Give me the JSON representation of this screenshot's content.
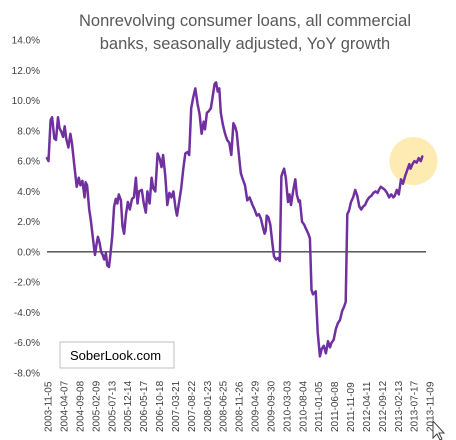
{
  "chart_data": {
    "type": "line",
    "title_lines": [
      "Nonrevolving consumer loans, all commercial",
      "banks, seasonally adjusted, YoY growth"
    ],
    "ylim": [
      -8,
      14
    ],
    "yticks": [
      14,
      12,
      10,
      8,
      6,
      4,
      2,
      0,
      -2,
      -4,
      -6,
      -8
    ],
    "ytick_labels": [
      "14.0%",
      "12.0%",
      "10.0%",
      "8.0%",
      "6.0%",
      "4.0%",
      "2.0%",
      "0.0%",
      "-2.0%",
      "-4.0%",
      "-6.0%",
      "-8.0%"
    ],
    "xlim": [
      "2003-11-05",
      "2013-12-15"
    ],
    "xtick_labels": [
      "2003-11-05",
      "2004-04-07",
      "2004-09-08",
      "2005-02-09",
      "2005-07-13",
      "2005-12-14",
      "2006-05-17",
      "2006-10-18",
      "2007-03-21",
      "2007-08-22",
      "2008-01-23",
      "2008-06-25",
      "2008-11-26",
      "2009-04-29",
      "2009-09-30",
      "2010-03-03",
      "2010-08-04",
      "2011-01-05",
      "2011-06-08",
      "2011-11-09",
      "2012-04-11",
      "2012-09-12",
      "2013-02-13",
      "2013-07-17",
      "2013-11-09"
    ],
    "zero_line": true,
    "grid": false,
    "highlight_color": "#fde9a9",
    "highlight_at": [
      "2013-08-15",
      6.0
    ],
    "series": [
      {
        "color": "#7030a0",
        "points": [
          [
            "2003-11-05",
            6.2
          ],
          [
            "2003-11-20",
            6.0
          ],
          [
            "2003-12-10",
            8.7
          ],
          [
            "2003-12-25",
            8.9
          ],
          [
            "2004-01-15",
            7.5
          ],
          [
            "2004-02-01",
            7.4
          ],
          [
            "2004-02-20",
            8.9
          ],
          [
            "2004-03-05",
            8.2
          ],
          [
            "2004-03-25",
            7.9
          ],
          [
            "2004-04-10",
            7.6
          ],
          [
            "2004-04-25",
            8.3
          ],
          [
            "2004-05-10",
            7.5
          ],
          [
            "2004-06-01",
            6.9
          ],
          [
            "2004-06-20",
            7.8
          ],
          [
            "2004-07-05",
            7.2
          ],
          [
            "2004-08-01",
            5.5
          ],
          [
            "2004-08-20",
            4.3
          ],
          [
            "2004-09-10",
            4.9
          ],
          [
            "2004-09-25",
            4.4
          ],
          [
            "2004-10-15",
            4.7
          ],
          [
            "2004-11-05",
            3.6
          ],
          [
            "2004-11-15",
            4.6
          ],
          [
            "2004-11-30",
            4.4
          ],
          [
            "2004-12-20",
            2.8
          ],
          [
            "2005-01-05",
            2.1
          ],
          [
            "2005-01-20",
            1.2
          ],
          [
            "2005-02-05",
            0.3
          ],
          [
            "2005-02-15",
            -0.2
          ],
          [
            "2005-03-01",
            0.5
          ],
          [
            "2005-03-15",
            1.0
          ],
          [
            "2005-04-01",
            0.6
          ],
          [
            "2005-04-15",
            0.0
          ],
          [
            "2005-05-01",
            -0.2
          ],
          [
            "2005-05-15",
            -0.5
          ],
          [
            "2005-06-01",
            -0.1
          ],
          [
            "2005-06-15",
            -0.9
          ],
          [
            "2005-07-01",
            -1.0
          ],
          [
            "2005-07-13",
            -0.3
          ],
          [
            "2005-08-01",
            1.0
          ],
          [
            "2005-08-20",
            3.0
          ],
          [
            "2005-09-05",
            3.5
          ],
          [
            "2005-09-20",
            3.2
          ],
          [
            "2005-10-05",
            3.8
          ],
          [
            "2005-10-25",
            3.4
          ],
          [
            "2005-11-10",
            1.7
          ],
          [
            "2005-11-25",
            1.2
          ],
          [
            "2005-12-14",
            2.5
          ],
          [
            "2006-01-01",
            3.3
          ],
          [
            "2006-01-20",
            2.8
          ],
          [
            "2006-02-10",
            3.5
          ],
          [
            "2006-03-01",
            3.6
          ],
          [
            "2006-03-20",
            4.9
          ],
          [
            "2006-04-05",
            3.2
          ],
          [
            "2006-04-20",
            4.0
          ],
          [
            "2006-05-17",
            4.1
          ],
          [
            "2006-06-05",
            3.2
          ],
          [
            "2006-06-25",
            2.6
          ],
          [
            "2006-07-10",
            4.0
          ],
          [
            "2006-08-01",
            3.2
          ],
          [
            "2006-08-20",
            4.9
          ],
          [
            "2006-09-05",
            4.2
          ],
          [
            "2006-09-25",
            4.0
          ],
          [
            "2006-10-18",
            6.5
          ],
          [
            "2006-11-05",
            6.2
          ],
          [
            "2006-11-25",
            5.6
          ],
          [
            "2006-12-10",
            6.4
          ],
          [
            "2007-01-01",
            5.0
          ],
          [
            "2007-01-20",
            3.1
          ],
          [
            "2007-02-10",
            3.9
          ],
          [
            "2007-03-01",
            3.6
          ],
          [
            "2007-03-21",
            4.0
          ],
          [
            "2007-04-10",
            2.9
          ],
          [
            "2007-04-25",
            2.4
          ],
          [
            "2007-05-15",
            3.3
          ],
          [
            "2007-06-05",
            4.2
          ],
          [
            "2007-06-25",
            5.5
          ],
          [
            "2007-07-15",
            6.5
          ],
          [
            "2007-08-05",
            6.6
          ],
          [
            "2007-08-22",
            6.4
          ],
          [
            "2007-09-10",
            9.5
          ],
          [
            "2007-09-30",
            10.2
          ],
          [
            "2007-10-20",
            10.8
          ],
          [
            "2007-11-10",
            9.8
          ],
          [
            "2007-12-01",
            9.1
          ],
          [
            "2007-12-20",
            7.8
          ],
          [
            "2008-01-10",
            8.6
          ],
          [
            "2008-01-23",
            8.1
          ],
          [
            "2008-02-10",
            9.2
          ],
          [
            "2008-03-01",
            9.3
          ],
          [
            "2008-03-20",
            9.5
          ],
          [
            "2008-04-10",
            10.4
          ],
          [
            "2008-04-25",
            11.1
          ],
          [
            "2008-05-10",
            11.2
          ],
          [
            "2008-05-25",
            10.6
          ],
          [
            "2008-06-10",
            10.8
          ],
          [
            "2008-06-25",
            9.2
          ],
          [
            "2008-07-15",
            8.4
          ],
          [
            "2008-08-05",
            7.8
          ],
          [
            "2008-08-25",
            7.4
          ],
          [
            "2008-09-15",
            7.2
          ],
          [
            "2008-10-05",
            6.4
          ],
          [
            "2008-10-25",
            8.5
          ],
          [
            "2008-11-10",
            8.3
          ],
          [
            "2008-11-26",
            7.9
          ],
          [
            "2008-12-15",
            6.6
          ],
          [
            "2009-01-05",
            5.2
          ],
          [
            "2009-01-25",
            4.8
          ],
          [
            "2009-02-15",
            4.4
          ],
          [
            "2009-03-10",
            3.4
          ],
          [
            "2009-04-01",
            3.6
          ],
          [
            "2009-04-29",
            3.1
          ],
          [
            "2009-05-20",
            2.8
          ],
          [
            "2009-06-10",
            2.4
          ],
          [
            "2009-07-01",
            2.5
          ],
          [
            "2009-07-20",
            2.2
          ],
          [
            "2009-08-10",
            1.6
          ],
          [
            "2009-08-25",
            1.2
          ],
          [
            "2009-09-05",
            1.4
          ],
          [
            "2009-09-15",
            2.4
          ],
          [
            "2009-09-30",
            2.3
          ],
          [
            "2009-10-20",
            1.8
          ],
          [
            "2009-11-10",
            0.5
          ],
          [
            "2009-11-25",
            -0.3
          ],
          [
            "2009-12-15",
            -0.5
          ],
          [
            "2010-01-05",
            -0.4
          ],
          [
            "2010-01-20",
            -0.6
          ],
          [
            "2010-02-05",
            5.0
          ],
          [
            "2010-02-20",
            5.3
          ],
          [
            "2010-03-03",
            5.5
          ],
          [
            "2010-03-20",
            4.9
          ],
          [
            "2010-04-10",
            3.3
          ],
          [
            "2010-04-25",
            3.8
          ],
          [
            "2010-05-10",
            3.1
          ],
          [
            "2010-06-01",
            4.1
          ],
          [
            "2010-06-20",
            4.8
          ],
          [
            "2010-07-05",
            3.8
          ],
          [
            "2010-07-25",
            3.3
          ],
          [
            "2010-08-04",
            3.4
          ],
          [
            "2010-08-25",
            2.0
          ],
          [
            "2010-09-15",
            1.8
          ],
          [
            "2010-10-05",
            1.5
          ],
          [
            "2010-10-25",
            1.2
          ],
          [
            "2010-11-10",
            0.9
          ],
          [
            "2010-11-25",
            -2.5
          ],
          [
            "2010-12-10",
            -2.8
          ],
          [
            "2011-01-05",
            -2.6
          ],
          [
            "2011-01-25",
            -5.3
          ],
          [
            "2011-02-15",
            -6.9
          ],
          [
            "2011-03-05",
            -6.4
          ],
          [
            "2011-03-25",
            -6.2
          ],
          [
            "2011-04-15",
            -6.7
          ],
          [
            "2011-05-05",
            -5.9
          ],
          [
            "2011-05-25",
            -6.3
          ],
          [
            "2011-06-08",
            -6.0
          ],
          [
            "2011-06-30",
            -5.8
          ],
          [
            "2011-07-20",
            -5.1
          ],
          [
            "2011-08-10",
            -4.7
          ],
          [
            "2011-08-30",
            -4.5
          ],
          [
            "2011-09-20",
            -3.9
          ],
          [
            "2011-10-10",
            -3.6
          ],
          [
            "2011-10-25",
            -3.3
          ],
          [
            "2011-11-09",
            2.5
          ],
          [
            "2011-11-25",
            2.7
          ],
          [
            "2011-12-15",
            3.3
          ],
          [
            "2012-01-05",
            3.6
          ],
          [
            "2012-01-25",
            4.1
          ],
          [
            "2012-02-15",
            3.7
          ],
          [
            "2012-03-05",
            3.0
          ],
          [
            "2012-03-25",
            2.8
          ],
          [
            "2012-04-11",
            3.0
          ],
          [
            "2012-05-01",
            3.1
          ],
          [
            "2012-05-20",
            3.4
          ],
          [
            "2012-06-10",
            3.6
          ],
          [
            "2012-06-30",
            3.7
          ],
          [
            "2012-07-20",
            3.9
          ],
          [
            "2012-08-10",
            4.0
          ],
          [
            "2012-08-30",
            3.9
          ],
          [
            "2012-09-12",
            4.1
          ],
          [
            "2012-10-01",
            4.3
          ],
          [
            "2012-10-20",
            4.2
          ],
          [
            "2012-11-10",
            4.1
          ],
          [
            "2012-11-30",
            3.9
          ],
          [
            "2012-12-20",
            3.6
          ],
          [
            "2013-01-10",
            3.8
          ],
          [
            "2013-01-30",
            3.6
          ],
          [
            "2013-02-13",
            3.7
          ],
          [
            "2013-03-05",
            4.1
          ],
          [
            "2013-03-25",
            3.8
          ],
          [
            "2013-04-15",
            4.8
          ],
          [
            "2013-05-05",
            4.5
          ],
          [
            "2013-05-25",
            5.0
          ],
          [
            "2013-06-15",
            5.4
          ],
          [
            "2013-07-05",
            5.8
          ],
          [
            "2013-07-17",
            5.5
          ],
          [
            "2013-08-05",
            5.8
          ],
          [
            "2013-08-25",
            6.0
          ],
          [
            "2013-09-15",
            5.9
          ],
          [
            "2013-10-05",
            6.2
          ],
          [
            "2013-10-25",
            6.0
          ],
          [
            "2013-11-09",
            6.3
          ]
        ]
      }
    ]
  },
  "watermark": {
    "text": "SoberLook.com"
  }
}
